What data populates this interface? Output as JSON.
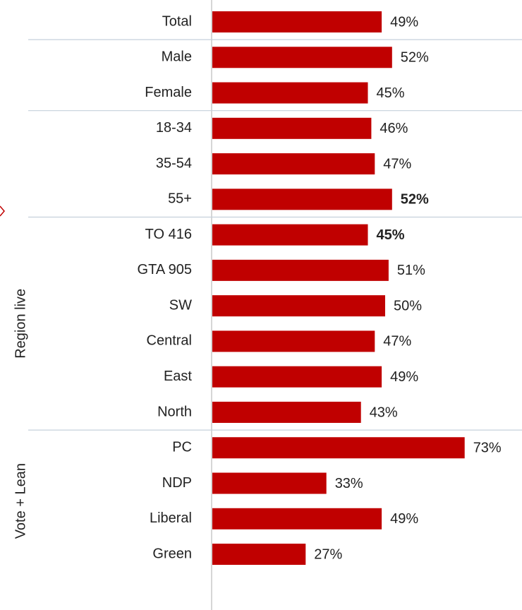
{
  "chart_data": {
    "type": "bar",
    "orientation": "horizontal",
    "categories": [
      "Total",
      "Male",
      "Female",
      "18-34",
      "35-54",
      "55+",
      "TO 416",
      "GTA 905",
      "SW",
      "Central",
      "East",
      "North",
      "PC",
      "NDP",
      "Liberal",
      "Green"
    ],
    "values": [
      49,
      52,
      45,
      46,
      47,
      52,
      45,
      51,
      50,
      47,
      49,
      43,
      73,
      33,
      49,
      27
    ],
    "value_labels": [
      "49%",
      "52%",
      "45%",
      "46%",
      "47%",
      "52%",
      "45%",
      "51%",
      "50%",
      "47%",
      "49%",
      "43%",
      "73%",
      "33%",
      "49%",
      "27%"
    ],
    "value_label_colors": [
      "#222222",
      "#222222",
      "#222222",
      "#222222",
      "#222222",
      "#22a046",
      "#e03030",
      "#222222",
      "#222222",
      "#222222",
      "#222222",
      "#222222",
      "#222222",
      "#222222",
      "#222222",
      "#222222"
    ],
    "color": "#c00000",
    "groups": [
      {
        "label": "Region live"
      },
      {
        "label": "Vote + Lean"
      }
    ]
  }
}
